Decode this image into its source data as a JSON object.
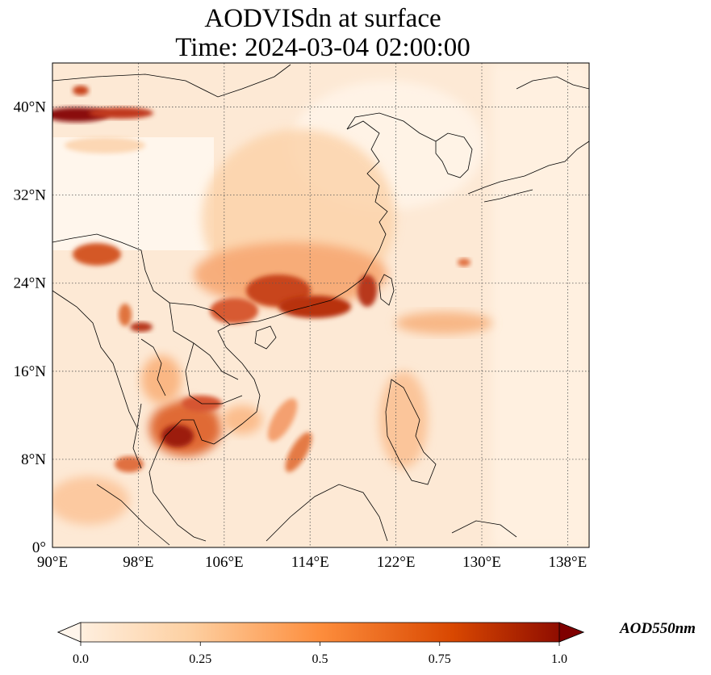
{
  "title": "AODVISdn at surface",
  "subtitle": "Time: 2024-03-04 02:00:00",
  "map": {
    "lon_range": [
      90,
      140
    ],
    "lat_range": [
      0,
      44
    ],
    "lon_ticks": [
      {
        "v": 90,
        "label": "90°E"
      },
      {
        "v": 98,
        "label": "98°E"
      },
      {
        "v": 106,
        "label": "106°E"
      },
      {
        "v": 114,
        "label": "114°E"
      },
      {
        "v": 122,
        "label": "122°E"
      },
      {
        "v": 130,
        "label": "130°E"
      },
      {
        "v": 138,
        "label": "138°E"
      }
    ],
    "lat_ticks": [
      {
        "v": 0,
        "label": "0°"
      },
      {
        "v": 8,
        "label": "8°N"
      },
      {
        "v": 16,
        "label": "16°N"
      },
      {
        "v": 24,
        "label": "24°N"
      },
      {
        "v": 32,
        "label": "32°N"
      },
      {
        "v": 40,
        "label": "40°N"
      }
    ],
    "gridlines": true,
    "colormap": [
      "#fff5eb",
      "#fdd0a2",
      "#fd8d3c",
      "#d94801",
      "#7f2704"
    ]
  },
  "colorbar": {
    "label": "AOD550nm",
    "range": [
      0,
      1
    ],
    "ticks": [
      "0.0",
      "0.25",
      "0.5",
      "0.75",
      "1.0"
    ],
    "extend": "both",
    "orientation": "horizontal"
  }
}
